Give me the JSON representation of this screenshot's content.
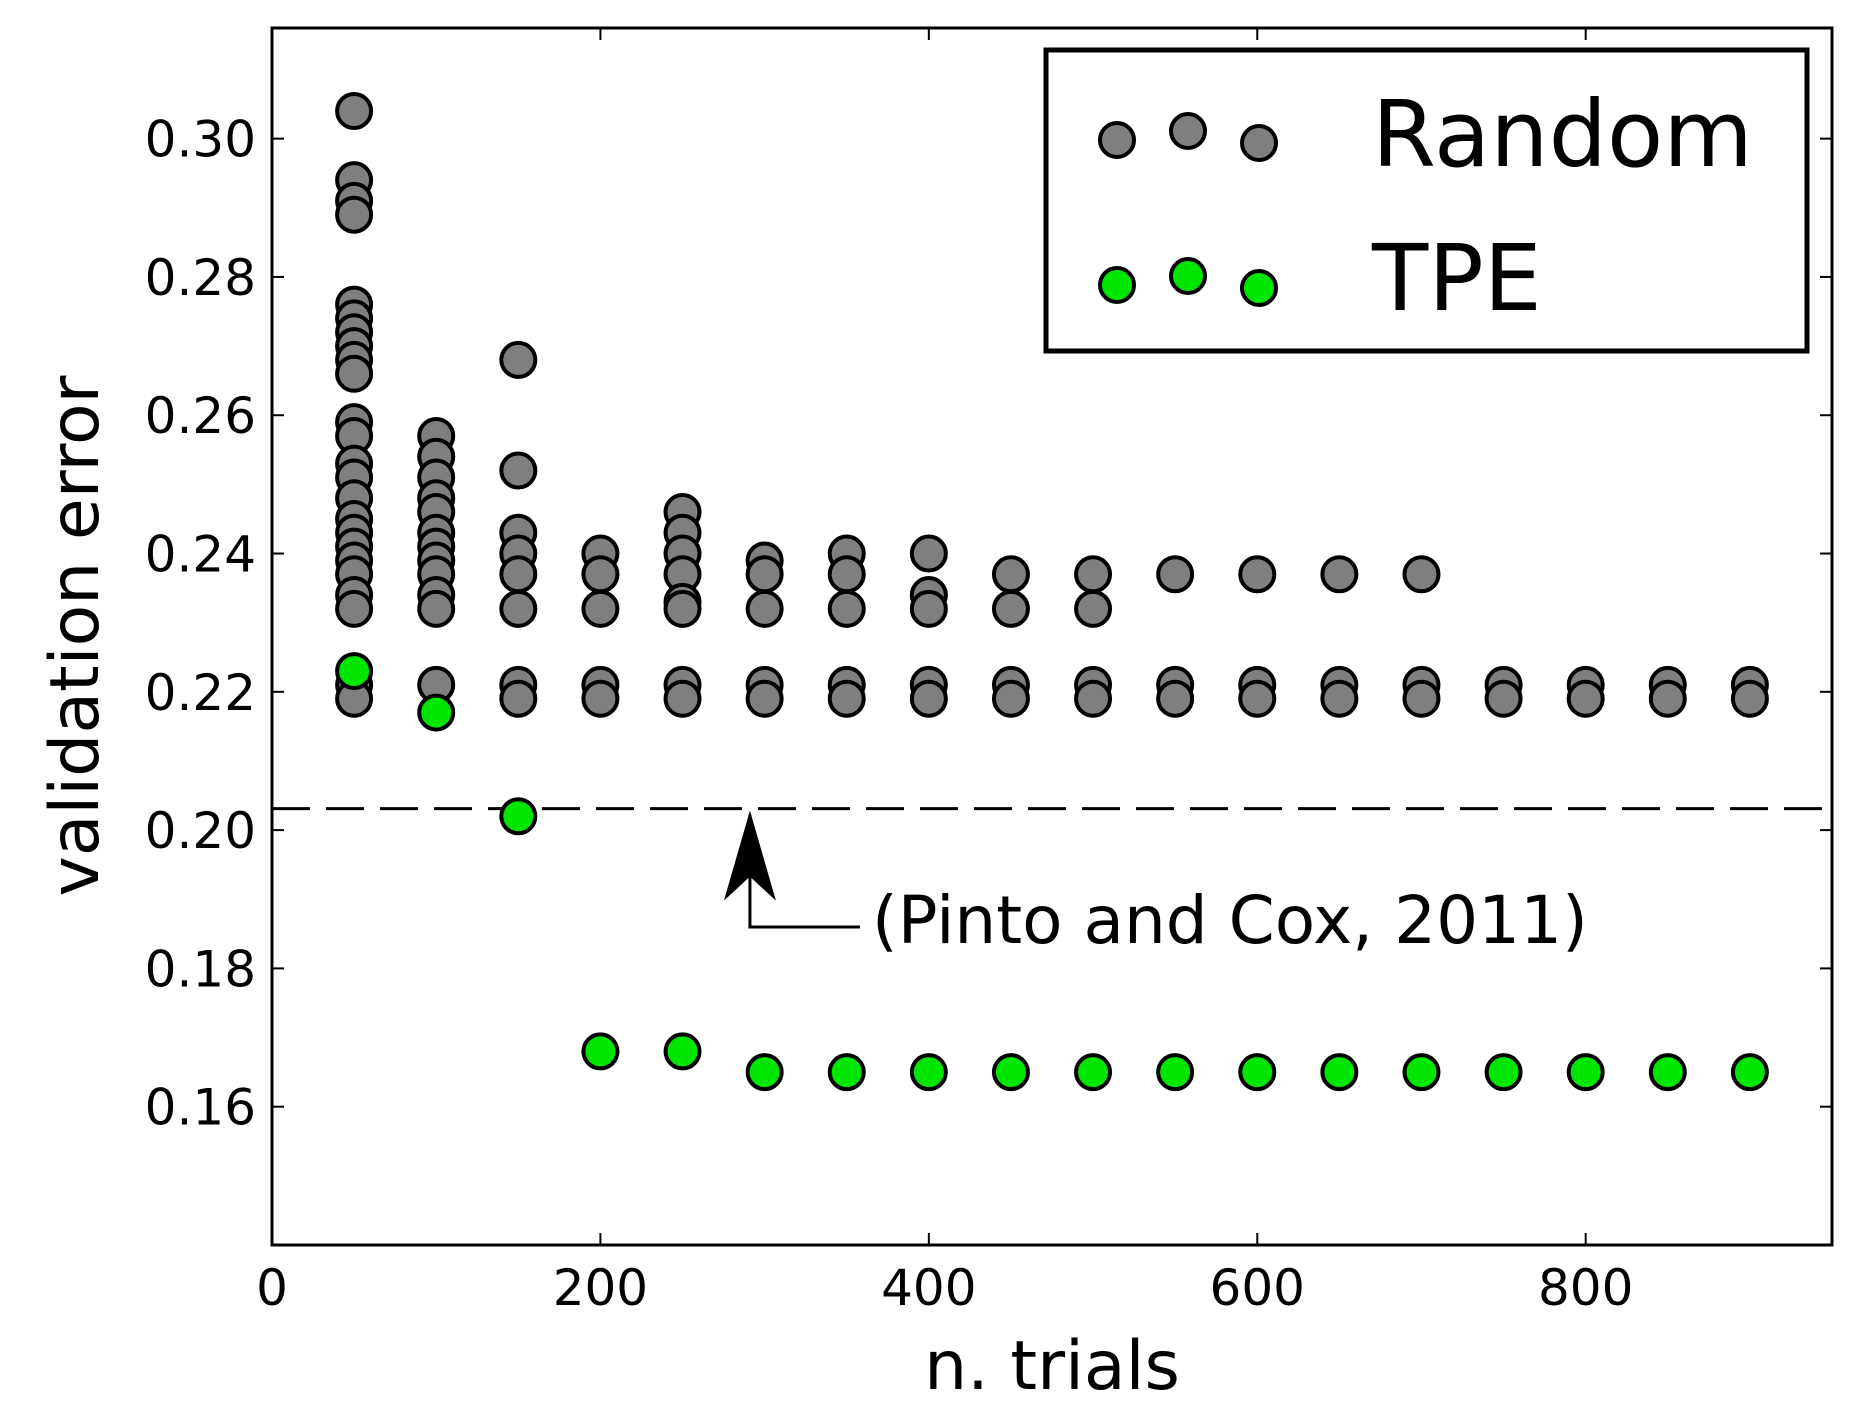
{
  "chart_data": {
    "type": "scatter",
    "xlabel": "n. trials",
    "ylabel": "validation error",
    "xlim": [
      0,
      950
    ],
    "ylim": [
      0.14,
      0.316
    ],
    "x_ticks": [
      {
        "value": 0,
        "label": "0"
      },
      {
        "value": 200,
        "label": "200"
      },
      {
        "value": 400,
        "label": "400"
      },
      {
        "value": 600,
        "label": "600"
      },
      {
        "value": 800,
        "label": "800"
      }
    ],
    "y_ticks": [
      {
        "value": 0.16,
        "label": "0.16"
      },
      {
        "value": 0.18,
        "label": "0.18"
      },
      {
        "value": 0.2,
        "label": "0.20"
      },
      {
        "value": 0.22,
        "label": "0.22"
      },
      {
        "value": 0.24,
        "label": "0.24"
      },
      {
        "value": 0.26,
        "label": "0.26"
      },
      {
        "value": 0.28,
        "label": "0.28"
      },
      {
        "value": 0.3,
        "label": "0.30"
      }
    ],
    "reference_line": {
      "y": 0.2031,
      "style": "dashed"
    },
    "annotation": {
      "text": "(Pinto and Cox, 2011)",
      "arrow_x": 288,
      "arrow_y": 0.2031
    },
    "legend": {
      "position": "top-right",
      "entries": [
        "Random",
        "TPE"
      ]
    },
    "series": [
      {
        "name": "Random",
        "color": "#7f7f7f",
        "points": [
          [
            50,
            0.304
          ],
          [
            50,
            0.294
          ],
          [
            50,
            0.291
          ],
          [
            50,
            0.289
          ],
          [
            50,
            0.276
          ],
          [
            50,
            0.274
          ],
          [
            50,
            0.272
          ],
          [
            50,
            0.27
          ],
          [
            50,
            0.268
          ],
          [
            50,
            0.266
          ],
          [
            50,
            0.259
          ],
          [
            50,
            0.257
          ],
          [
            50,
            0.253
          ],
          [
            50,
            0.251
          ],
          [
            50,
            0.248
          ],
          [
            50,
            0.245
          ],
          [
            50,
            0.243
          ],
          [
            50,
            0.241
          ],
          [
            50,
            0.239
          ],
          [
            50,
            0.237
          ],
          [
            50,
            0.234
          ],
          [
            50,
            0.232
          ],
          [
            50,
            0.221
          ],
          [
            50,
            0.219
          ],
          [
            100,
            0.257
          ],
          [
            100,
            0.254
          ],
          [
            100,
            0.251
          ],
          [
            100,
            0.248
          ],
          [
            100,
            0.246
          ],
          [
            100,
            0.243
          ],
          [
            100,
            0.241
          ],
          [
            100,
            0.239
          ],
          [
            100,
            0.237
          ],
          [
            100,
            0.234
          ],
          [
            100,
            0.232
          ],
          [
            100,
            0.221
          ],
          [
            150,
            0.268
          ],
          [
            150,
            0.252
          ],
          [
            150,
            0.243
          ],
          [
            150,
            0.24
          ],
          [
            150,
            0.237
          ],
          [
            150,
            0.232
          ],
          [
            150,
            0.221
          ],
          [
            150,
            0.219
          ],
          [
            200,
            0.24
          ],
          [
            200,
            0.237
          ],
          [
            200,
            0.232
          ],
          [
            200,
            0.221
          ],
          [
            200,
            0.219
          ],
          [
            250,
            0.246
          ],
          [
            250,
            0.243
          ],
          [
            250,
            0.24
          ],
          [
            250,
            0.237
          ],
          [
            250,
            0.233
          ],
          [
            250,
            0.232
          ],
          [
            250,
            0.221
          ],
          [
            250,
            0.219
          ],
          [
            300,
            0.239
          ],
          [
            300,
            0.237
          ],
          [
            300,
            0.232
          ],
          [
            300,
            0.221
          ],
          [
            300,
            0.219
          ],
          [
            350,
            0.24
          ],
          [
            350,
            0.237
          ],
          [
            350,
            0.232
          ],
          [
            350,
            0.221
          ],
          [
            350,
            0.219
          ],
          [
            400,
            0.24
          ],
          [
            400,
            0.234
          ],
          [
            400,
            0.232
          ],
          [
            400,
            0.221
          ],
          [
            400,
            0.219
          ],
          [
            450,
            0.237
          ],
          [
            450,
            0.232
          ],
          [
            450,
            0.221
          ],
          [
            450,
            0.219
          ],
          [
            500,
            0.237
          ],
          [
            500,
            0.232
          ],
          [
            500,
            0.221
          ],
          [
            500,
            0.219
          ],
          [
            550,
            0.237
          ],
          [
            550,
            0.221
          ],
          [
            550,
            0.219
          ],
          [
            600,
            0.237
          ],
          [
            600,
            0.221
          ],
          [
            600,
            0.219
          ],
          [
            650,
            0.237
          ],
          [
            650,
            0.221
          ],
          [
            650,
            0.219
          ],
          [
            700,
            0.237
          ],
          [
            700,
            0.221
          ],
          [
            700,
            0.219
          ],
          [
            750,
            0.221
          ],
          [
            750,
            0.219
          ],
          [
            800,
            0.221
          ],
          [
            800,
            0.219
          ],
          [
            850,
            0.221
          ],
          [
            850,
            0.219
          ],
          [
            900,
            0.221
          ],
          [
            900,
            0.219
          ]
        ]
      },
      {
        "name": "TPE",
        "color": "#00e600",
        "points": [
          [
            50,
            0.223
          ],
          [
            100,
            0.217
          ],
          [
            150,
            0.202
          ],
          [
            200,
            0.168
          ],
          [
            250,
            0.168
          ],
          [
            300,
            0.165
          ],
          [
            350,
            0.165
          ],
          [
            400,
            0.165
          ],
          [
            450,
            0.165
          ],
          [
            500,
            0.165
          ],
          [
            550,
            0.165
          ],
          [
            600,
            0.165
          ],
          [
            650,
            0.165
          ],
          [
            700,
            0.165
          ],
          [
            750,
            0.165
          ],
          [
            800,
            0.165
          ],
          [
            850,
            0.165
          ],
          [
            900,
            0.165
          ]
        ]
      }
    ]
  }
}
